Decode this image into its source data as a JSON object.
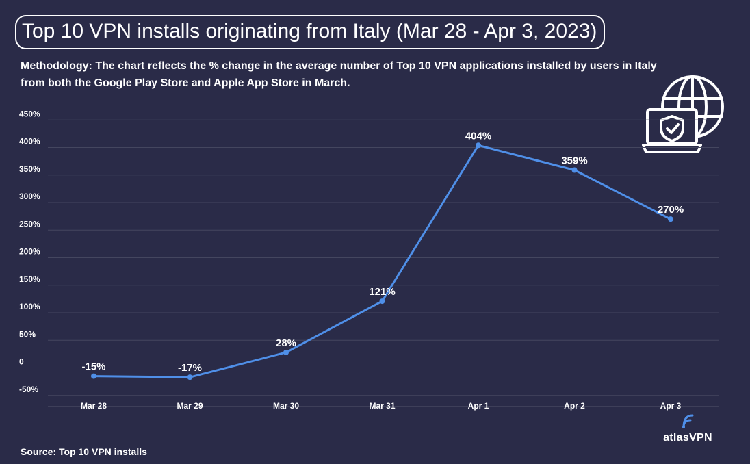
{
  "header": {
    "title": "Top 10 VPN installs originating from Italy (Mar 28 - Apr 3, 2023)",
    "methodology": "Methodology: The chart reflects the % change in the average number of Top 10 VPN applications installed by users in Italy from both the Google Play Store and Apple App Store in March."
  },
  "footer": {
    "source": "Source: Top 10 VPN installs",
    "brand": "atlasVPN"
  },
  "icons": {
    "decoration": "globe-laptop-shield-icon",
    "brand": "atlas-signal-icon"
  },
  "colors": {
    "background": "#2a2b48",
    "line": "#4f8fe8",
    "grid": "#44465f",
    "text": "#ffffff"
  },
  "chart_data": {
    "type": "line",
    "categories": [
      "Mar 28",
      "Mar 29",
      "Mar 30",
      "Mar 31",
      "Apr 1",
      "Apr 2",
      "Apr 3"
    ],
    "values": [
      -15,
      -17,
      28,
      121,
      404,
      359,
      270
    ],
    "data_labels": [
      "-15%",
      "-17%",
      "28%",
      "121%",
      "404%",
      "359%",
      "270%"
    ],
    "y_ticks": [
      -50,
      0,
      50,
      100,
      150,
      200,
      250,
      300,
      350,
      400,
      450
    ],
    "y_tick_labels": [
      "-50%",
      "0",
      "50%",
      "100%",
      "150%",
      "200%",
      "250%",
      "300%",
      "350%",
      "400%",
      "450%"
    ],
    "ylim": [
      -60,
      460
    ],
    "grid": true,
    "legend": false
  }
}
